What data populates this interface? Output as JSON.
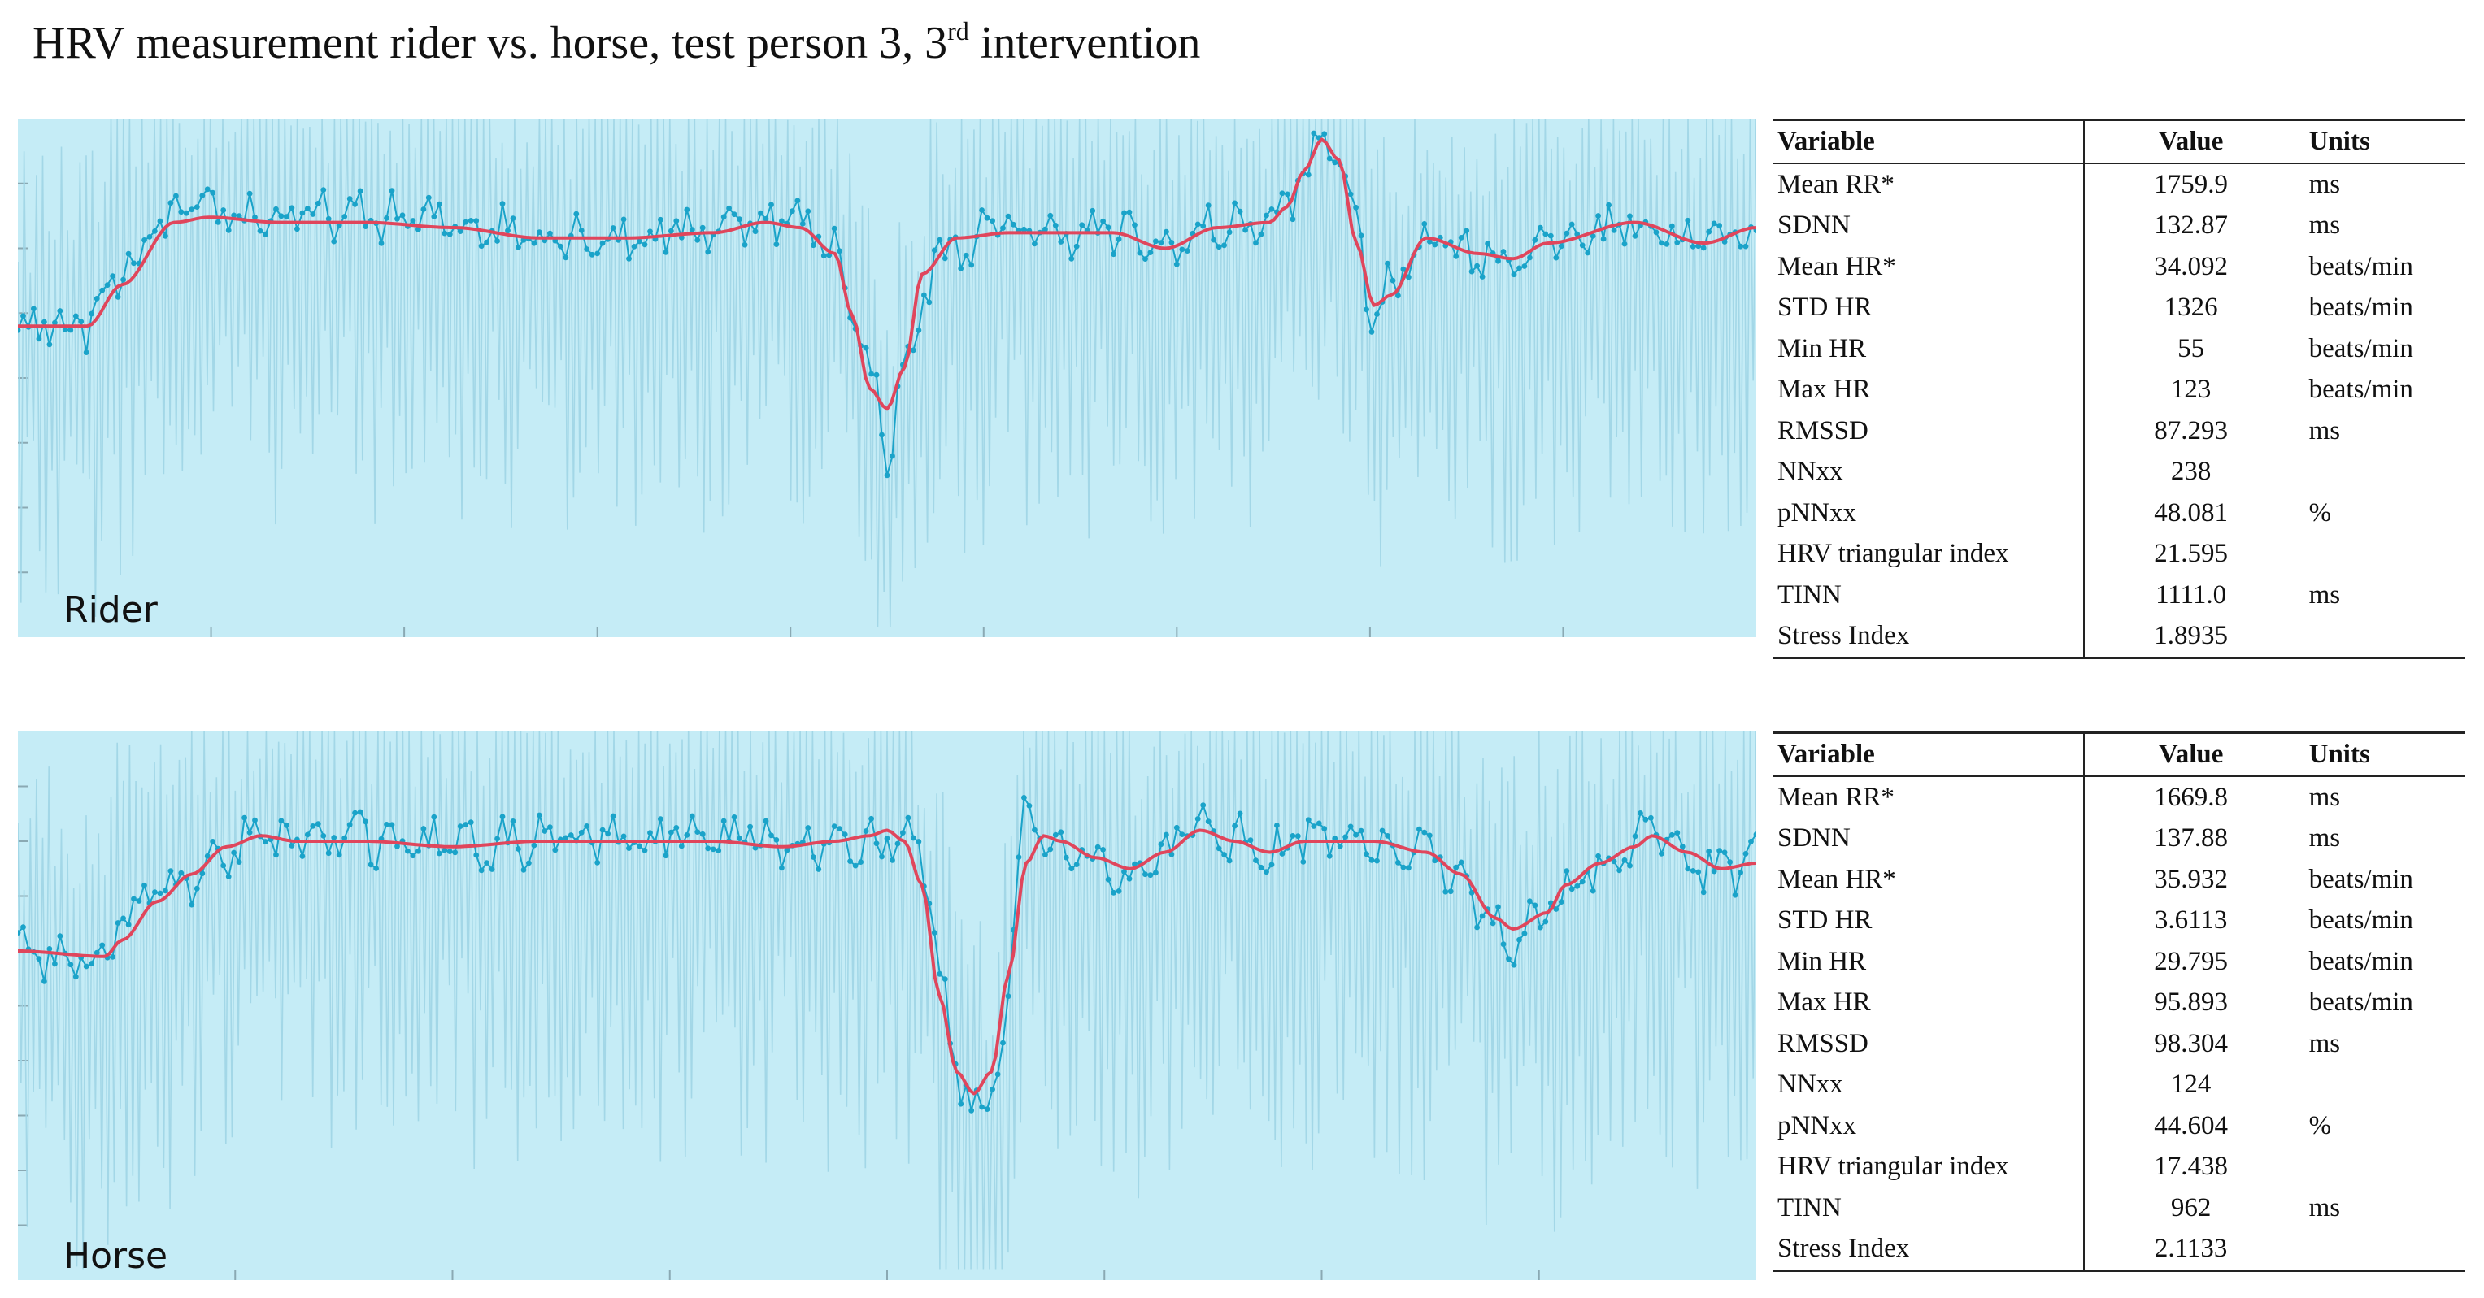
{
  "title": {
    "prefix": "HRV measurement rider vs. horse, test person 3, 3",
    "sup": "rd",
    "suffix": " intervention"
  },
  "colors": {
    "panel_bg": "#c5ecf6",
    "raw_line": "#9fd5e6",
    "rr_series": "#1aa3c9",
    "trend": "#e0465c",
    "axis": "#8aa9b3"
  },
  "table_headers": {
    "variable": "Variable",
    "value": "Value",
    "units": "Units"
  },
  "chart_data": [
    {
      "id": "rider",
      "label": "Rider",
      "type": "line",
      "xlim": [
        0,
        100
      ],
      "ylim": [
        0,
        100
      ],
      "ticks_y": 7,
      "ticks_x": 8,
      "rr_keyframes": [
        [
          0,
          60
        ],
        [
          4,
          60
        ],
        [
          6,
          70
        ],
        [
          9,
          81
        ],
        [
          11,
          82
        ],
        [
          15,
          81
        ],
        [
          20,
          81
        ],
        [
          25,
          80
        ],
        [
          30,
          78
        ],
        [
          35,
          77
        ],
        [
          40,
          79
        ],
        [
          43,
          81
        ],
        [
          45,
          80
        ],
        [
          47,
          75
        ],
        [
          49,
          52
        ],
        [
          50,
          36
        ],
        [
          51,
          52
        ],
        [
          53,
          74
        ],
        [
          57,
          79
        ],
        [
          60,
          78
        ],
        [
          63,
          78
        ],
        [
          66,
          75
        ],
        [
          69,
          79
        ],
        [
          72,
          80
        ],
        [
          74,
          88
        ],
        [
          75,
          96
        ],
        [
          76,
          94
        ],
        [
          77,
          78
        ],
        [
          78,
          62
        ],
        [
          79,
          67
        ],
        [
          81,
          78
        ],
        [
          84,
          74
        ],
        [
          86,
          73
        ],
        [
          88,
          76
        ],
        [
          93,
          80
        ],
        [
          97,
          76
        ],
        [
          100,
          79
        ]
      ],
      "trend_keyframes": [
        [
          0,
          60
        ],
        [
          4,
          60
        ],
        [
          6,
          68
        ],
        [
          9,
          80
        ],
        [
          11,
          81
        ],
        [
          15,
          80
        ],
        [
          20,
          80
        ],
        [
          25,
          79
        ],
        [
          30,
          77
        ],
        [
          35,
          77
        ],
        [
          40,
          78
        ],
        [
          43,
          80
        ],
        [
          45,
          79
        ],
        [
          47,
          74
        ],
        [
          48,
          62
        ],
        [
          49,
          48
        ],
        [
          50,
          44
        ],
        [
          51,
          52
        ],
        [
          52,
          70
        ],
        [
          54,
          77
        ],
        [
          57,
          78
        ],
        [
          60,
          78
        ],
        [
          63,
          78
        ],
        [
          66,
          75
        ],
        [
          69,
          79
        ],
        [
          72,
          80
        ],
        [
          73,
          83
        ],
        [
          74,
          90
        ],
        [
          75,
          96
        ],
        [
          76,
          92
        ],
        [
          77,
          76
        ],
        [
          78,
          64
        ],
        [
          79,
          66
        ],
        [
          81,
          77
        ],
        [
          84,
          74
        ],
        [
          86,
          73
        ],
        [
          88,
          76
        ],
        [
          93,
          80
        ],
        [
          97,
          76
        ],
        [
          100,
          79
        ]
      ],
      "stats": [
        {
          "variable": "Mean RR*",
          "value": "1759.9",
          "units": "ms"
        },
        {
          "variable": "SDNN",
          "value": "132.87",
          "units": "ms"
        },
        {
          "variable": "Mean HR*",
          "value": "34.092",
          "units": "beats/min"
        },
        {
          "variable": "STD HR",
          "value": "1326",
          "units": "beats/min"
        },
        {
          "variable": "Min HR",
          "value": "55",
          "units": "beats/min"
        },
        {
          "variable": "Max HR",
          "value": "123",
          "units": "beats/min"
        },
        {
          "variable": "RMSSD",
          "value": "87.293",
          "units": "ms"
        },
        {
          "variable": "NNxx",
          "value": "238",
          "units": ""
        },
        {
          "variable": "pNNxx",
          "value": "48.081",
          "units": "%"
        },
        {
          "variable": "HRV triangular index",
          "value": "21.595",
          "units": ""
        },
        {
          "variable": "TINN",
          "value": "1111.0",
          "units": "ms"
        },
        {
          "variable": "Stress Index",
          "value": "1.8935",
          "units": ""
        }
      ]
    },
    {
      "id": "horse",
      "label": "Horse",
      "type": "line",
      "xlim": [
        0,
        100
      ],
      "ylim": [
        0,
        100
      ],
      "ticks_y": 9,
      "ticks_x": 7,
      "rr_keyframes": [
        [
          0,
          60
        ],
        [
          5,
          59
        ],
        [
          6,
          66
        ],
        [
          7,
          68
        ],
        [
          9,
          72
        ],
        [
          12,
          79
        ],
        [
          16,
          81
        ],
        [
          20,
          80
        ],
        [
          25,
          79
        ],
        [
          30,
          80
        ],
        [
          35,
          80
        ],
        [
          40,
          81
        ],
        [
          44,
          80
        ],
        [
          47,
          79
        ],
        [
          49,
          80
        ],
        [
          51,
          81
        ],
        [
          52,
          76
        ],
        [
          53,
          58
        ],
        [
          54,
          38
        ],
        [
          55,
          32
        ],
        [
          56,
          33
        ],
        [
          57,
          54
        ],
        [
          58,
          86
        ],
        [
          59,
          82
        ],
        [
          60,
          78
        ],
        [
          62,
          76
        ],
        [
          64,
          74
        ],
        [
          66,
          79
        ],
        [
          68,
          83
        ],
        [
          70,
          80
        ],
        [
          72,
          78
        ],
        [
          74,
          80
        ],
        [
          78,
          80
        ],
        [
          81,
          78
        ],
        [
          83,
          74
        ],
        [
          85,
          64
        ],
        [
          86,
          62
        ],
        [
          88,
          67
        ],
        [
          89,
          72
        ],
        [
          91,
          76
        ],
        [
          93,
          80
        ],
        [
          94,
          82
        ],
        [
          96,
          77
        ],
        [
          98,
          75
        ],
        [
          100,
          77
        ]
      ],
      "trend_keyframes": [
        [
          0,
          60
        ],
        [
          5,
          59
        ],
        [
          6,
          62
        ],
        [
          8,
          69
        ],
        [
          10,
          74
        ],
        [
          12,
          79
        ],
        [
          14,
          81
        ],
        [
          16,
          80
        ],
        [
          20,
          80
        ],
        [
          25,
          79
        ],
        [
          30,
          80
        ],
        [
          35,
          80
        ],
        [
          40,
          80
        ],
        [
          44,
          79
        ],
        [
          47,
          80
        ],
        [
          49,
          81
        ],
        [
          50,
          82
        ],
        [
          51,
          80
        ],
        [
          52,
          72
        ],
        [
          53,
          52
        ],
        [
          54,
          38
        ],
        [
          55,
          34
        ],
        [
          56,
          38
        ],
        [
          57,
          56
        ],
        [
          58,
          76
        ],
        [
          59,
          81
        ],
        [
          60,
          80
        ],
        [
          62,
          77
        ],
        [
          64,
          75
        ],
        [
          66,
          78
        ],
        [
          68,
          82
        ],
        [
          70,
          80
        ],
        [
          72,
          78
        ],
        [
          74,
          80
        ],
        [
          78,
          80
        ],
        [
          81,
          78
        ],
        [
          83,
          74
        ],
        [
          85,
          66
        ],
        [
          86,
          64
        ],
        [
          88,
          67
        ],
        [
          89,
          72
        ],
        [
          91,
          76
        ],
        [
          93,
          79
        ],
        [
          94,
          81
        ],
        [
          96,
          78
        ],
        [
          98,
          75
        ],
        [
          100,
          76
        ]
      ],
      "stats": [
        {
          "variable": "Mean RR*",
          "value": "1669.8",
          "units": "ms"
        },
        {
          "variable": "SDNN",
          "value": "137.88",
          "units": "ms"
        },
        {
          "variable": "Mean HR*",
          "value": "35.932",
          "units": "beats/min"
        },
        {
          "variable": "STD HR",
          "value": "3.6113",
          "units": "beats/min"
        },
        {
          "variable": "Min HR",
          "value": "29.795",
          "units": "beats/min"
        },
        {
          "variable": "Max HR",
          "value": "95.893",
          "units": "beats/min"
        },
        {
          "variable": "RMSSD",
          "value": "98.304",
          "units": "ms"
        },
        {
          "variable": "NNxx",
          "value": "124",
          "units": ""
        },
        {
          "variable": "pNNxx",
          "value": "44.604",
          "units": "%"
        },
        {
          "variable": "HRV triangular index",
          "value": "17.438",
          "units": ""
        },
        {
          "variable": "TINN",
          "value": "962",
          "units": "ms"
        },
        {
          "variable": "Stress Index",
          "value": "2.1133",
          "units": ""
        }
      ]
    }
  ]
}
